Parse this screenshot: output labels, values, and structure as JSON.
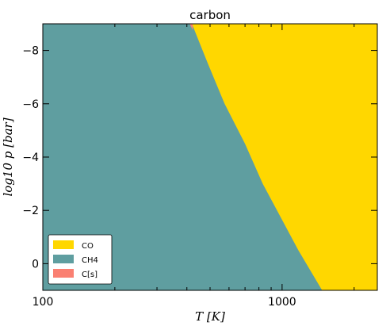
{
  "chart_data": {
    "type": "area",
    "title": "carbon",
    "xlabel": "T [K]",
    "ylabel": "log10 p [bar]",
    "x_scale": "log",
    "xlim": [
      100,
      2500
    ],
    "ylim": [
      1,
      -9
    ],
    "y_ticks": [
      0,
      -2,
      -4,
      -6,
      -8
    ],
    "x_tick_labels": [
      "100",
      "1000"
    ],
    "grid": false,
    "legend_placement": "lower-left",
    "series": [
      {
        "name": "CO",
        "color": "#FFD700"
      },
      {
        "name": "CH4",
        "color": "#5F9EA0"
      },
      {
        "name": "C[s]",
        "color": "#FA8072"
      }
    ],
    "boundary": {
      "description_units": "x in K, y in log10 bar; CH4 lies to the left of the boundary, CO to the right",
      "points": [
        [
          420,
          -9
        ],
        [
          490,
          -7.5
        ],
        [
          575,
          -6
        ],
        [
          700,
          -4.5
        ],
        [
          830,
          -3
        ],
        [
          1020,
          -1.5
        ],
        [
          1170,
          -0.5
        ],
        [
          1470,
          1
        ]
      ]
    }
  }
}
